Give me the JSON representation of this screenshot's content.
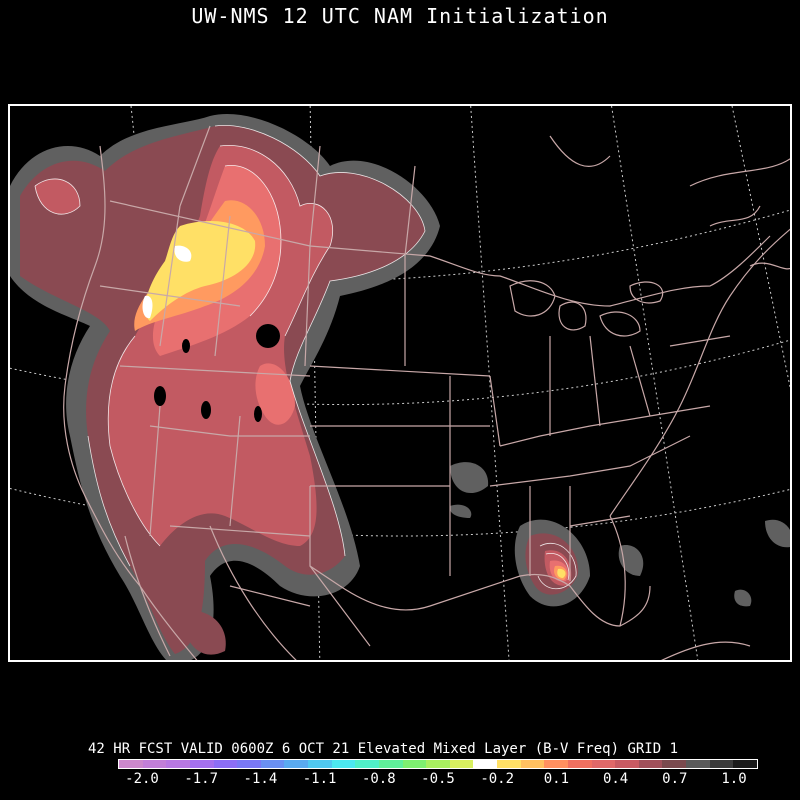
{
  "title": "UW-NMS 12 UTC NAM Initialization",
  "footer": "42 HR FCST VALID 0600Z  6 OCT 21 Elevated Mixed Layer (B-V Freq) GRID 1",
  "colorbar": {
    "colors": [
      "#cc88cc",
      "#c27fd8",
      "#b878e2",
      "#a470ee",
      "#8c6ef5",
      "#7a78f5",
      "#6a90f2",
      "#5aaaf0",
      "#50c8f0",
      "#4ce8f0",
      "#50f0c8",
      "#60f09a",
      "#7ef070",
      "#a8f060",
      "#d8f060",
      "#ffffff",
      "#ffe066",
      "#ffc060",
      "#ff9060",
      "#f07060",
      "#e06868",
      "#c85a62",
      "#a0505a",
      "#7a4a4e",
      "#5a5a5a",
      "#3a3a3a",
      "#1a1a1a"
    ],
    "tick_labels": [
      "-2.0",
      "-1.7",
      "-1.4",
      "-1.1",
      "-0.8",
      "-0.5",
      "-0.2",
      "0.1",
      "0.4",
      "0.7",
      "1.0"
    ],
    "tick_values": [
      -2.0,
      -1.7,
      -1.4,
      -1.1,
      -0.8,
      -0.5,
      -0.2,
      0.1,
      0.4,
      0.7,
      1.0
    ],
    "range": [
      -2.0,
      1.0
    ]
  },
  "map": {
    "projection": "lambert-conformal",
    "region": "North America",
    "boundary_color": "#c8a8a8",
    "graticule_color": "#cccccc",
    "fill_colors": {
      "gray": "#606060",
      "low": "#8a4a52",
      "mid": "#c25a62",
      "high": "#e87070",
      "orange": "#ff9a60",
      "yellow": "#ffe066",
      "white": "#ffffff"
    }
  }
}
